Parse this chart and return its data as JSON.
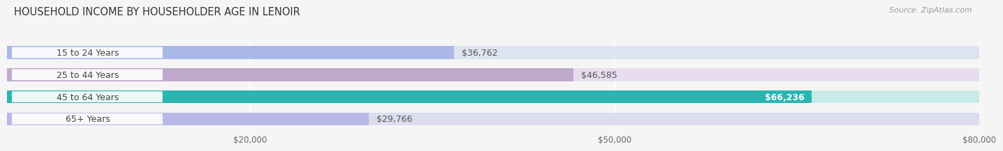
{
  "title": "HOUSEHOLD INCOME BY HOUSEHOLDER AGE IN LENOIR",
  "source": "Source: ZipAtlas.com",
  "categories": [
    "15 to 24 Years",
    "25 to 44 Years",
    "45 to 64 Years",
    "65+ Years"
  ],
  "values": [
    36762,
    46585,
    66236,
    29766
  ],
  "bar_colors": [
    "#aab8e8",
    "#c0a8cc",
    "#2ab5b0",
    "#b8b8e8"
  ],
  "bg_bar_colors": [
    "#dde4f0",
    "#e8ddf0",
    "#c8eae8",
    "#dcdcf0"
  ],
  "label_colors": [
    "#555555",
    "#555555",
    "#ffffff",
    "#555555"
  ],
  "xlim": [
    0,
    80000
  ],
  "xticks": [
    20000,
    50000,
    80000
  ],
  "xtick_labels": [
    "$20,000",
    "$50,000",
    "$80,000"
  ],
  "background_color": "#f5f5f5",
  "title_fontsize": 10.5,
  "source_fontsize": 8,
  "bar_height": 0.58,
  "grid_color": "#ffffff"
}
